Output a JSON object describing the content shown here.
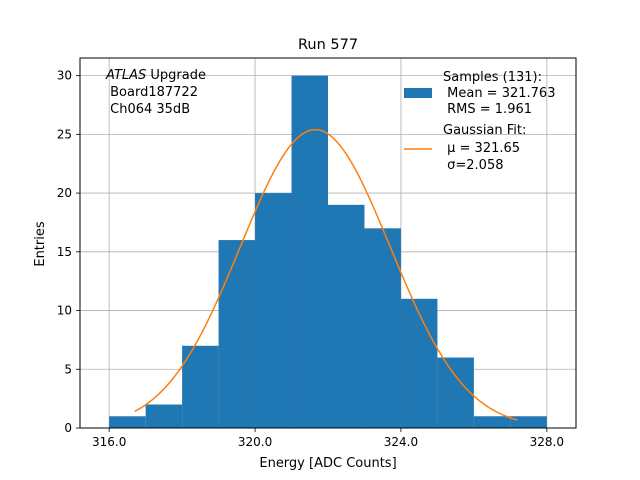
{
  "chart_data": {
    "type": "bar",
    "title": "Run 577",
    "xlabel": "Energy [ADC Counts]",
    "ylabel": "Entries",
    "xlim": [
      315.2,
      328.8
    ],
    "ylim": [
      0,
      31.5
    ],
    "xticks": [
      316.0,
      320.0,
      324.0,
      328.0
    ],
    "xtick_labels": [
      "316.0",
      "320.0",
      "324.0",
      "328.0"
    ],
    "yticks": [
      0,
      5,
      10,
      15,
      20,
      25,
      30
    ],
    "ytick_labels": [
      "0",
      "5",
      "10",
      "15",
      "20",
      "25",
      "30"
    ],
    "grid": true,
    "bin_edges": [
      316,
      317,
      318,
      319,
      320,
      321,
      322,
      323,
      324,
      325,
      326,
      327,
      328
    ],
    "values": [
      1,
      2,
      7,
      16,
      20,
      30,
      19,
      17,
      11,
      6,
      1,
      1
    ],
    "fit": {
      "type": "gaussian",
      "amplitude": 25.4,
      "mu": 321.65,
      "sigma": 2.058,
      "x_range": [
        316.7,
        327.2
      ]
    },
    "annotation": {
      "italic": "ATLAS",
      "lines": [
        " Upgrade",
        " Board187722",
        " Ch064 35dB"
      ]
    },
    "legend": {
      "position": "top-right",
      "entries": [
        {
          "name": "histogram",
          "label": [
            "Samples (131):",
            " Mean = 321.763",
            " RMS = 1.961"
          ]
        },
        {
          "name": "fit",
          "label": [
            "Gaussian Fit:",
            " μ = 321.65",
            " σ=2.058"
          ]
        }
      ]
    },
    "colors": {
      "bar": "#1f77b4",
      "fit": "#ff7f0e",
      "grid": "#b0b0b0",
      "axis": "#000000"
    }
  }
}
